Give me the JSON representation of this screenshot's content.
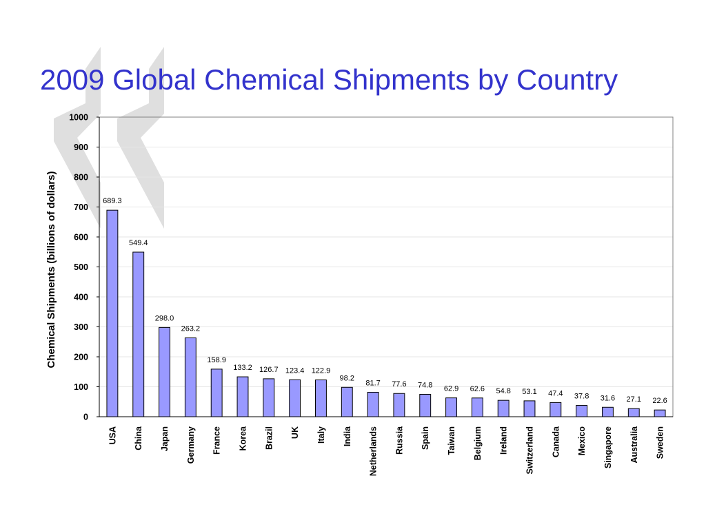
{
  "slide": {
    "title": "2009 Global Chemical Shipments by Country"
  },
  "colors": {
    "title": "#3333cc",
    "bar_fill": "#9999ff",
    "bar_stroke": "#000000",
    "chevron": "#d9d9d9"
  },
  "chart_data": {
    "type": "bar",
    "title": "",
    "xlabel": "",
    "ylabel": "Chemical Shipments (billions of dollars)",
    "ylim": [
      0,
      1000
    ],
    "yticks": [
      "0",
      "100",
      "200",
      "300",
      "400",
      "500",
      "600",
      "700",
      "800",
      "900",
      "1000"
    ],
    "grid": true,
    "legend": "none",
    "categories": [
      "USA",
      "China",
      "Japan",
      "Germany",
      "France",
      "Korea",
      "Brazil",
      "UK",
      "Italy",
      "India",
      "Netherlands",
      "Russia",
      "Spain",
      "Taiwan",
      "Belgium",
      "Ireland",
      "Switzerland",
      "Canada",
      "Mexico",
      "Singapore",
      "Australia",
      "Sweden"
    ],
    "values": [
      689.3,
      549.4,
      298.0,
      263.2,
      158.9,
      133.2,
      126.7,
      123.4,
      122.9,
      98.2,
      81.7,
      77.6,
      74.8,
      62.9,
      62.6,
      54.8,
      53.1,
      47.4,
      37.8,
      31.6,
      27.1,
      22.6
    ],
    "data_labels": [
      "689.3",
      "549.4",
      "298.0",
      "263.2",
      "158.9",
      "133.2",
      "126.7",
      "123.4",
      "122.9",
      "98.2",
      "81.7",
      "77.6",
      "74.8",
      "62.9",
      "62.6",
      "54.8",
      "53.1",
      "47.4",
      "37.8",
      "31.6",
      "27.1",
      "22.6"
    ]
  }
}
